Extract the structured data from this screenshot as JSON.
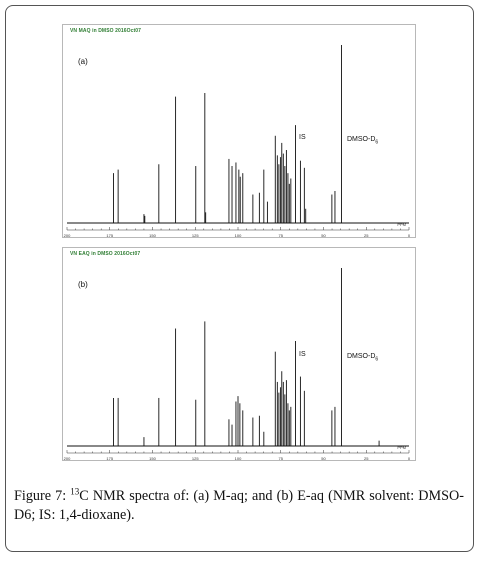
{
  "caption": {
    "figure_label": "Figure 7:",
    "isotope_mass": "13",
    "text": "C NMR spectra of: (a) M-aq; and (b) E-aq (NMR solvent: DMSO-D6; IS: 1,4-dioxane)."
  },
  "colors": {
    "spectrum": "#111111",
    "title": "#2e7d32",
    "axis": "#333333"
  },
  "chart_data": [
    {
      "type": "line",
      "panel_label": "(a)",
      "title": "VN MAQ in DMSO 2016Oct07",
      "xlabel": "PPM",
      "x_reversed": true,
      "xlim": [
        200,
        0
      ],
      "ticks": [
        "200",
        "175",
        "150",
        "125",
        "100",
        "75",
        "50",
        "25",
        "0"
      ],
      "annotations": [
        {
          "text": "IS",
          "ppm": 66.4
        },
        {
          "text": "DMSO-D",
          "sub": "6",
          "ppm": 39.5
        }
      ],
      "peaks": [
        {
          "ppm": 172.8,
          "height": 0.28
        },
        {
          "ppm": 170.1,
          "height": 0.3
        },
        {
          "ppm": 155.0,
          "height": 0.05
        },
        {
          "ppm": 154.5,
          "height": 0.04
        },
        {
          "ppm": 146.3,
          "height": 0.33
        },
        {
          "ppm": 136.5,
          "height": 0.71
        },
        {
          "ppm": 124.7,
          "height": 0.32
        },
        {
          "ppm": 119.4,
          "height": 0.73
        },
        {
          "ppm": 118.9,
          "height": 0.06
        },
        {
          "ppm": 105.3,
          "height": 0.36
        },
        {
          "ppm": 103.5,
          "height": 0.32
        },
        {
          "ppm": 101.2,
          "height": 0.34
        },
        {
          "ppm": 99.5,
          "height": 0.3
        },
        {
          "ppm": 98.7,
          "height": 0.26
        },
        {
          "ppm": 97.2,
          "height": 0.28
        },
        {
          "ppm": 91.3,
          "height": 0.16
        },
        {
          "ppm": 87.5,
          "height": 0.17
        },
        {
          "ppm": 84.9,
          "height": 0.3
        },
        {
          "ppm": 82.8,
          "height": 0.12
        },
        {
          "ppm": 78.2,
          "height": 0.49
        },
        {
          "ppm": 77.0,
          "height": 0.38
        },
        {
          "ppm": 76.1,
          "height": 0.33
        },
        {
          "ppm": 75.2,
          "height": 0.37
        },
        {
          "ppm": 74.4,
          "height": 0.45
        },
        {
          "ppm": 73.5,
          "height": 0.39
        },
        {
          "ppm": 72.6,
          "height": 0.32
        },
        {
          "ppm": 71.7,
          "height": 0.41
        },
        {
          "ppm": 70.8,
          "height": 0.28
        },
        {
          "ppm": 70.0,
          "height": 0.22
        },
        {
          "ppm": 69.1,
          "height": 0.25
        },
        {
          "ppm": 66.4,
          "height": 0.55
        },
        {
          "ppm": 63.5,
          "height": 0.35
        },
        {
          "ppm": 61.2,
          "height": 0.31
        },
        {
          "ppm": 60.4,
          "height": 0.08
        },
        {
          "ppm": 45.1,
          "height": 0.16
        },
        {
          "ppm": 43.3,
          "height": 0.18
        },
        {
          "ppm": 39.5,
          "height": 1.0
        }
      ]
    },
    {
      "type": "line",
      "panel_label": "(b)",
      "title": "VN EAQ in DMSO 2016Oct07",
      "xlabel": "PPM",
      "x_reversed": true,
      "xlim": [
        200,
        0
      ],
      "ticks": [
        "200",
        "175",
        "150",
        "125",
        "100",
        "75",
        "50",
        "25",
        "0"
      ],
      "annotations": [
        {
          "text": "IS",
          "ppm": 66.4
        },
        {
          "text": "DMSO-D",
          "sub": "6",
          "ppm": 39.5
        }
      ],
      "peaks": [
        {
          "ppm": 172.8,
          "height": 0.27
        },
        {
          "ppm": 170.1,
          "height": 0.27
        },
        {
          "ppm": 155.0,
          "height": 0.05
        },
        {
          "ppm": 146.3,
          "height": 0.27
        },
        {
          "ppm": 136.5,
          "height": 0.66
        },
        {
          "ppm": 124.7,
          "height": 0.26
        },
        {
          "ppm": 119.4,
          "height": 0.7
        },
        {
          "ppm": 105.3,
          "height": 0.15
        },
        {
          "ppm": 103.5,
          "height": 0.12
        },
        {
          "ppm": 101.2,
          "height": 0.25
        },
        {
          "ppm": 100.0,
          "height": 0.28
        },
        {
          "ppm": 98.9,
          "height": 0.24
        },
        {
          "ppm": 97.2,
          "height": 0.2
        },
        {
          "ppm": 91.3,
          "height": 0.16
        },
        {
          "ppm": 87.5,
          "height": 0.17
        },
        {
          "ppm": 84.9,
          "height": 0.08
        },
        {
          "ppm": 78.2,
          "height": 0.53
        },
        {
          "ppm": 77.0,
          "height": 0.36
        },
        {
          "ppm": 76.1,
          "height": 0.3
        },
        {
          "ppm": 75.2,
          "height": 0.33
        },
        {
          "ppm": 74.4,
          "height": 0.42
        },
        {
          "ppm": 73.5,
          "height": 0.36
        },
        {
          "ppm": 72.6,
          "height": 0.29
        },
        {
          "ppm": 71.7,
          "height": 0.37
        },
        {
          "ppm": 70.8,
          "height": 0.24
        },
        {
          "ppm": 70.0,
          "height": 0.2
        },
        {
          "ppm": 69.1,
          "height": 0.22
        },
        {
          "ppm": 66.4,
          "height": 0.59
        },
        {
          "ppm": 63.5,
          "height": 0.39
        },
        {
          "ppm": 61.2,
          "height": 0.31
        },
        {
          "ppm": 45.1,
          "height": 0.2
        },
        {
          "ppm": 43.3,
          "height": 0.22
        },
        {
          "ppm": 39.5,
          "height": 1.0
        },
        {
          "ppm": 17.5,
          "height": 0.03
        }
      ]
    }
  ]
}
